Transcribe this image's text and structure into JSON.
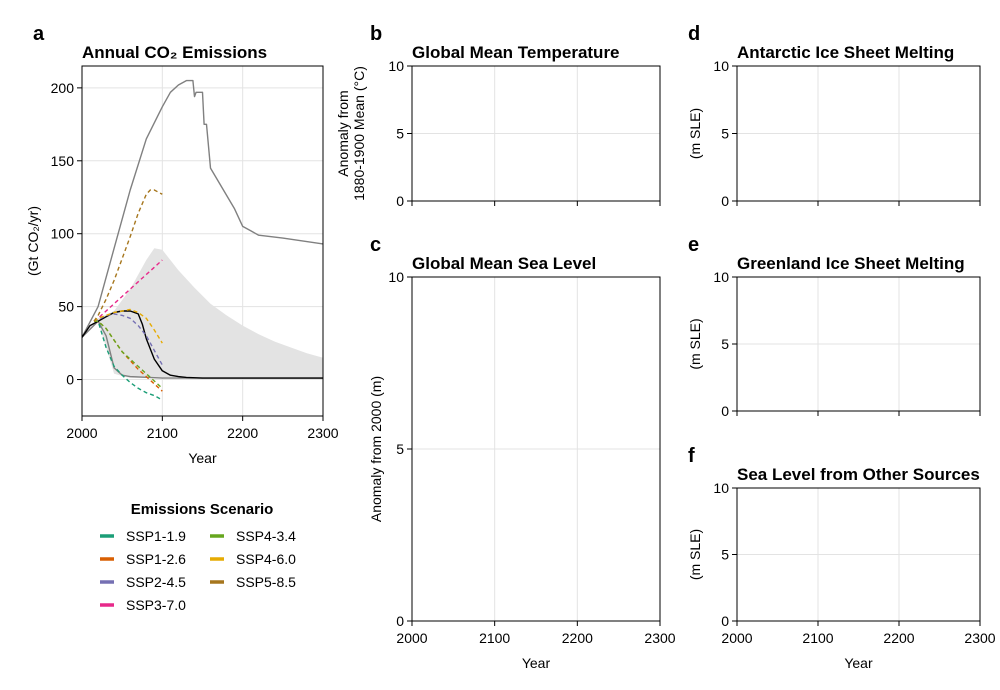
{
  "panels": [
    {
      "id": "a",
      "letter": "a",
      "title": "Annual CO₂ Emissions",
      "ylabel": [
        "(Gt CO₂/yr)"
      ],
      "xlabel": "Year",
      "yticks": [
        0,
        50,
        100,
        150,
        200
      ],
      "xticks": [
        2000,
        2100,
        2200,
        2300
      ]
    },
    {
      "id": "b",
      "letter": "b",
      "title": "Global Mean Temperature",
      "ylabel": [
        "Anomaly from",
        "1880-1900 Mean (°C)"
      ],
      "xlabel": "",
      "yticks": [
        0,
        5,
        10
      ],
      "xticks": []
    },
    {
      "id": "c",
      "letter": "c",
      "title": "Global Mean Sea Level",
      "ylabel": [
        "Anomaly from 2000 (m)"
      ],
      "xlabel": "Year",
      "yticks": [
        0,
        5,
        10
      ],
      "xticks": [
        2000,
        2100,
        2200,
        2300
      ]
    },
    {
      "id": "d",
      "letter": "d",
      "title": "Antarctic Ice Sheet Melting",
      "ylabel": [
        "(m SLE)"
      ],
      "xlabel": "",
      "yticks": [
        0,
        5,
        10
      ],
      "xticks": []
    },
    {
      "id": "e",
      "letter": "e",
      "title": "Greenland Ice Sheet Melting",
      "ylabel": [
        "(m SLE)"
      ],
      "xlabel": "",
      "yticks": [
        0,
        5,
        10
      ],
      "xticks": []
    },
    {
      "id": "f",
      "letter": "f",
      "title": "Sea Level from Other Sources",
      "ylabel": [
        "(m SLE)"
      ],
      "xlabel": "Year",
      "yticks": [
        0,
        5,
        10
      ],
      "xticks": [
        2000,
        2100,
        2200,
        2300
      ]
    }
  ],
  "legend": {
    "title": "Emissions Scenario",
    "items": [
      {
        "label": "SSP1-1.9",
        "color": "#1b9e77"
      },
      {
        "label": "SSP1-2.6",
        "color": "#d95f02"
      },
      {
        "label": "SSP2-4.5",
        "color": "#7570b3"
      },
      {
        "label": "SSP3-7.0",
        "color": "#e7298a"
      },
      {
        "label": "SSP4-3.4",
        "color": "#66a61e"
      },
      {
        "label": "SSP4-6.0",
        "color": "#e6ab02"
      },
      {
        "label": "SSP5-8.5",
        "color": "#a6761d"
      }
    ]
  },
  "chart_data": [
    {
      "panel": "a",
      "type": "line",
      "title": "Annual CO₂ Emissions",
      "xlabel": "Year",
      "ylabel": "(Gt CO₂/yr)",
      "xlim": [
        2000,
        2300
      ],
      "ylim": [
        -25,
        215
      ],
      "grid": true,
      "band": {
        "color": "#e3e3e3",
        "x": [
          2000,
          2020,
          2040,
          2060,
          2080,
          2090,
          2100,
          2120,
          2140,
          2160,
          2180,
          2200,
          2220,
          2240,
          2260,
          2280,
          2300
        ],
        "upper": [
          30,
          42,
          47,
          62,
          82,
          90,
          89,
          75,
          63,
          52,
          44,
          37,
          31,
          26,
          22,
          18,
          15
        ],
        "lower": [
          30,
          40,
          4,
          1,
          1,
          1,
          1,
          1,
          1,
          1,
          1,
          1,
          1,
          1,
          1,
          1,
          1
        ]
      },
      "series": [
        {
          "color": "#808080",
          "style": "solid",
          "x": [
            2000,
            2020,
            2040,
            2060,
            2080,
            2100,
            2110,
            2120,
            2130,
            2138,
            2140,
            2142,
            2150,
            2152,
            2155,
            2160,
            2190,
            2200,
            2210,
            2220,
            2250,
            2300
          ],
          "values": [
            29,
            50,
            90,
            130,
            165,
            187,
            197,
            202,
            205,
            205,
            194,
            197,
            197,
            175,
            175,
            145,
            117,
            105,
            102,
            99,
            97,
            93
          ]
        },
        {
          "color": "#808080",
          "style": "solid",
          "x": [
            2000,
            2020,
            2030,
            2040,
            2050,
            2060,
            2100,
            2150,
            2200,
            2300
          ],
          "values": [
            29,
            40,
            30,
            8,
            3,
            2,
            1,
            1,
            1,
            1
          ]
        },
        {
          "color": "#000000",
          "style": "solid",
          "x": [
            2000,
            2010,
            2020,
            2030,
            2040,
            2050,
            2060,
            2070,
            2075,
            2080,
            2090,
            2100,
            2110,
            2120,
            2130,
            2150,
            2200,
            2300
          ],
          "values": [
            29,
            37,
            40,
            43,
            46,
            47,
            47,
            45,
            38,
            28,
            14,
            6,
            3,
            2,
            1.5,
            1,
            1,
            1
          ]
        },
        {
          "name": "SSP1-1.9",
          "color": "#1b9e77",
          "style": "dashed",
          "x": [
            2015,
            2020,
            2030,
            2040,
            2050,
            2060,
            2070,
            2080,
            2090,
            2100
          ],
          "values": [
            40,
            40,
            22,
            9,
            3,
            -2,
            -6,
            -9,
            -11,
            -14
          ]
        },
        {
          "name": "SSP1-2.6",
          "color": "#d95f02",
          "style": "dashed",
          "x": [
            2015,
            2020,
            2030,
            2040,
            2050,
            2060,
            2070,
            2080,
            2090,
            2100
          ],
          "values": [
            40,
            40,
            35,
            27,
            19,
            13,
            7,
            2,
            -3,
            -8
          ]
        },
        {
          "name": "SSP2-4.5",
          "color": "#7570b3",
          "style": "dashed",
          "x": [
            2015,
            2020,
            2030,
            2040,
            2050,
            2060,
            2070,
            2080,
            2090,
            2100
          ],
          "values": [
            40,
            41,
            44,
            45,
            44,
            42,
            37,
            30,
            20,
            10
          ]
        },
        {
          "name": "SSP3-7.0",
          "color": "#e7298a",
          "style": "dashed",
          "x": [
            2015,
            2020,
            2030,
            2040,
            2050,
            2060,
            2070,
            2080,
            2090,
            2100
          ],
          "values": [
            40,
            42,
            47,
            52,
            57,
            62,
            67,
            72,
            77,
            82
          ]
        },
        {
          "name": "SSP4-3.4",
          "color": "#66a61e",
          "style": "dashed",
          "x": [
            2015,
            2020,
            2030,
            2040,
            2050,
            2060,
            2070,
            2080,
            2090,
            2100
          ],
          "values": [
            40,
            40,
            35,
            27,
            19,
            14,
            9,
            4,
            -1,
            -6
          ]
        },
        {
          "name": "SSP4-6.0",
          "color": "#e6ab02",
          "style": "dashed",
          "x": [
            2015,
            2020,
            2030,
            2040,
            2050,
            2060,
            2070,
            2080,
            2090,
            2100
          ],
          "values": [
            40,
            42,
            44,
            46,
            47,
            48,
            46,
            42,
            34,
            25
          ]
        },
        {
          "name": "SSP5-8.5",
          "color": "#a6761d",
          "style": "dashed",
          "x": [
            2015,
            2020,
            2030,
            2040,
            2050,
            2060,
            2070,
            2080,
            2085,
            2090,
            2100
          ],
          "values": [
            40,
            44,
            55,
            68,
            83,
            98,
            114,
            127,
            130,
            130,
            127
          ]
        }
      ]
    },
    {
      "panel": "b",
      "type": "line",
      "title": "Global Mean Temperature",
      "ylabel": "Anomaly from 1880-1900 Mean (°C)",
      "xlim": [
        2000,
        2300
      ],
      "ylim": [
        0,
        10
      ],
      "grid": true,
      "series": []
    },
    {
      "panel": "c",
      "type": "line",
      "title": "Global Mean Sea Level",
      "xlabel": "Year",
      "ylabel": "Anomaly from 2000 (m)",
      "xlim": [
        2000,
        2300
      ],
      "ylim": [
        0,
        10
      ],
      "grid": true,
      "series": []
    },
    {
      "panel": "d",
      "type": "line",
      "title": "Antarctic Ice Sheet Melting",
      "ylabel": "(m SLE)",
      "xlim": [
        2000,
        2300
      ],
      "ylim": [
        0,
        10
      ],
      "grid": true,
      "series": []
    },
    {
      "panel": "e",
      "type": "line",
      "title": "Greenland Ice Sheet Melting",
      "ylabel": "(m SLE)",
      "xlim": [
        2000,
        2300
      ],
      "ylim": [
        0,
        10
      ],
      "grid": true,
      "series": []
    },
    {
      "panel": "f",
      "type": "line",
      "title": "Sea Level from Other Sources",
      "xlabel": "Year",
      "ylabel": "(m SLE)",
      "xlim": [
        2000,
        2300
      ],
      "ylim": [
        0,
        10
      ],
      "grid": true,
      "series": []
    }
  ]
}
